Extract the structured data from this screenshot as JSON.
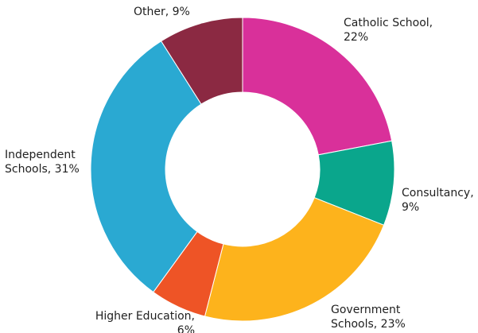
{
  "chart_data": {
    "type": "pie",
    "donut": true,
    "title": "",
    "slices": [
      {
        "label_lines": [
          "Catholic School,",
          "22%"
        ],
        "category": "Catholic School",
        "value": 22,
        "color": "#d9309a"
      },
      {
        "label_lines": [
          "Consultancy,",
          "9%"
        ],
        "category": "Consultancy",
        "value": 9,
        "color": "#0aa68c"
      },
      {
        "label_lines": [
          "Government",
          "Schools, 23%"
        ],
        "category": "Government Schools",
        "value": 23,
        "color": "#fdb31c"
      },
      {
        "label_lines": [
          "Higher Education,",
          "6%"
        ],
        "category": "Higher Education",
        "value": 6,
        "color": "#ee5426"
      },
      {
        "label_lines": [
          "Independent",
          "Schools, 31%"
        ],
        "category": "Independent Schools",
        "value": 31,
        "color": "#2aa9d2"
      },
      {
        "label_lines": [
          "Other, 9%"
        ],
        "category": "Other",
        "value": 9,
        "color": "#8b2942"
      }
    ]
  }
}
